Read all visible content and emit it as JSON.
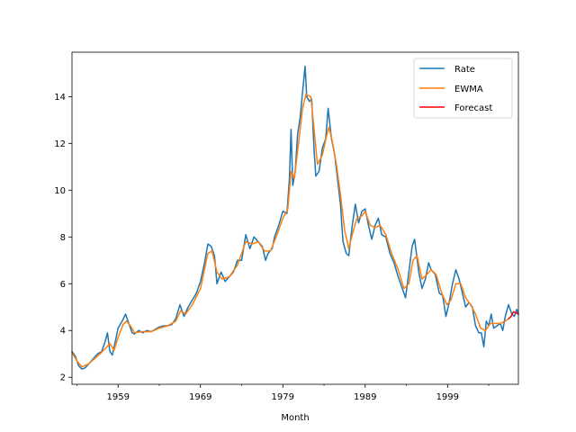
{
  "chart_data": {
    "type": "line",
    "title": "",
    "xlabel": "Month",
    "ylabel": "",
    "xlim": [
      1953.4,
      2007.6
    ],
    "ylim": [
      1.7,
      15.9
    ],
    "x_major_ticks": [
      1959,
      1969,
      1979,
      1989,
      1999
    ],
    "x_major_tick_labels": [
      "1959",
      "1969",
      "1979",
      "1989",
      "1999"
    ],
    "x_minor_ticks": [
      1954,
      1964,
      1974,
      1984,
      1994,
      2004
    ],
    "y_ticks": [
      2,
      4,
      6,
      8,
      10,
      12,
      14
    ],
    "y_tick_labels": [
      "2",
      "4",
      "6",
      "8",
      "10",
      "12",
      "14"
    ],
    "grid": false,
    "legend": {
      "position": "upper right",
      "entries": [
        "Rate",
        "EWMA",
        "Forecast"
      ]
    },
    "series": [
      {
        "name": "Rate",
        "color": "#1f77b4",
        "points": [
          [
            1953.4,
            3.1
          ],
          [
            1953.8,
            2.9
          ],
          [
            1954.2,
            2.5
          ],
          [
            1954.6,
            2.35
          ],
          [
            1955.0,
            2.4
          ],
          [
            1955.5,
            2.6
          ],
          [
            1956.0,
            2.8
          ],
          [
            1956.5,
            3.0
          ],
          [
            1957.0,
            3.1
          ],
          [
            1957.4,
            3.5
          ],
          [
            1957.7,
            3.9
          ],
          [
            1958.0,
            3.1
          ],
          [
            1958.3,
            2.95
          ],
          [
            1958.7,
            3.6
          ],
          [
            1959.0,
            4.1
          ],
          [
            1959.5,
            4.4
          ],
          [
            1959.9,
            4.7
          ],
          [
            1960.3,
            4.3
          ],
          [
            1960.7,
            3.9
          ],
          [
            1961.0,
            3.85
          ],
          [
            1961.5,
            4.0
          ],
          [
            1962.0,
            3.9
          ],
          [
            1962.5,
            4.0
          ],
          [
            1963.0,
            3.95
          ],
          [
            1963.5,
            4.05
          ],
          [
            1964.0,
            4.15
          ],
          [
            1964.5,
            4.2
          ],
          [
            1965.0,
            4.2
          ],
          [
            1965.5,
            4.25
          ],
          [
            1966.0,
            4.5
          ],
          [
            1966.5,
            5.1
          ],
          [
            1967.0,
            4.6
          ],
          [
            1967.5,
            5.0
          ],
          [
            1968.0,
            5.3
          ],
          [
            1968.5,
            5.6
          ],
          [
            1969.0,
            6.1
          ],
          [
            1969.5,
            6.9
          ],
          [
            1969.9,
            7.7
          ],
          [
            1970.3,
            7.6
          ],
          [
            1970.7,
            7.2
          ],
          [
            1971.0,
            6.0
          ],
          [
            1971.5,
            6.5
          ],
          [
            1972.0,
            6.1
          ],
          [
            1972.5,
            6.3
          ],
          [
            1973.0,
            6.5
          ],
          [
            1973.5,
            7.0
          ],
          [
            1974.0,
            7.0
          ],
          [
            1974.5,
            8.1
          ],
          [
            1975.0,
            7.5
          ],
          [
            1975.5,
            8.0
          ],
          [
            1976.0,
            7.8
          ],
          [
            1976.5,
            7.6
          ],
          [
            1976.9,
            7.0
          ],
          [
            1977.2,
            7.3
          ],
          [
            1977.7,
            7.5
          ],
          [
            1978.0,
            8.0
          ],
          [
            1978.5,
            8.5
          ],
          [
            1979.0,
            9.1
          ],
          [
            1979.5,
            9.0
          ],
          [
            1979.8,
            10.5
          ],
          [
            1980.0,
            12.6
          ],
          [
            1980.2,
            10.2
          ],
          [
            1980.5,
            10.8
          ],
          [
            1980.8,
            12.4
          ],
          [
            1981.1,
            13.1
          ],
          [
            1981.4,
            14.2
          ],
          [
            1981.7,
            15.3
          ],
          [
            1981.9,
            14.0
          ],
          [
            1982.2,
            13.8
          ],
          [
            1982.5,
            13.9
          ],
          [
            1982.8,
            11.7
          ],
          [
            1983.0,
            10.6
          ],
          [
            1983.4,
            10.8
          ],
          [
            1983.8,
            11.8
          ],
          [
            1984.2,
            12.2
          ],
          [
            1984.5,
            13.5
          ],
          [
            1984.9,
            12.2
          ],
          [
            1985.3,
            11.5
          ],
          [
            1985.7,
            10.3
          ],
          [
            1986.0,
            9.4
          ],
          [
            1986.3,
            7.8
          ],
          [
            1986.7,
            7.3
          ],
          [
            1987.0,
            7.2
          ],
          [
            1987.4,
            8.4
          ],
          [
            1987.8,
            9.4
          ],
          [
            1988.2,
            8.6
          ],
          [
            1988.6,
            9.1
          ],
          [
            1989.0,
            9.2
          ],
          [
            1989.4,
            8.5
          ],
          [
            1989.8,
            7.9
          ],
          [
            1990.2,
            8.5
          ],
          [
            1990.6,
            8.8
          ],
          [
            1991.0,
            8.1
          ],
          [
            1991.5,
            8.0
          ],
          [
            1992.0,
            7.3
          ],
          [
            1992.5,
            6.9
          ],
          [
            1993.0,
            6.3
          ],
          [
            1993.5,
            5.8
          ],
          [
            1993.9,
            5.4
          ],
          [
            1994.3,
            6.5
          ],
          [
            1994.7,
            7.6
          ],
          [
            1995.0,
            7.9
          ],
          [
            1995.5,
            6.5
          ],
          [
            1995.9,
            5.8
          ],
          [
            1996.3,
            6.2
          ],
          [
            1996.7,
            6.9
          ],
          [
            1997.0,
            6.6
          ],
          [
            1997.5,
            6.4
          ],
          [
            1998.0,
            5.6
          ],
          [
            1998.4,
            5.5
          ],
          [
            1998.8,
            4.6
          ],
          [
            1999.2,
            5.2
          ],
          [
            1999.6,
            6.0
          ],
          [
            2000.0,
            6.6
          ],
          [
            2000.4,
            6.2
          ],
          [
            2000.8,
            5.6
          ],
          [
            2001.2,
            5.0
          ],
          [
            2001.6,
            5.2
          ],
          [
            2002.0,
            5.0
          ],
          [
            2002.4,
            4.2
          ],
          [
            2002.8,
            3.9
          ],
          [
            2003.1,
            3.9
          ],
          [
            2003.4,
            3.3
          ],
          [
            2003.7,
            4.4
          ],
          [
            2004.0,
            4.2
          ],
          [
            2004.3,
            4.7
          ],
          [
            2004.6,
            4.1
          ],
          [
            2005.0,
            4.2
          ],
          [
            2005.4,
            4.3
          ],
          [
            2005.7,
            4.0
          ],
          [
            2006.0,
            4.6
          ],
          [
            2006.4,
            5.1
          ],
          [
            2006.8,
            4.7
          ],
          [
            2007.1,
            4.6
          ],
          [
            2007.4,
            4.9
          ],
          [
            2007.6,
            4.7
          ]
        ]
      },
      {
        "name": "EWMA",
        "color": "#ff7f0e",
        "points": [
          [
            1953.4,
            3.05
          ],
          [
            1954.0,
            2.7
          ],
          [
            1954.6,
            2.45
          ],
          [
            1955.3,
            2.55
          ],
          [
            1956.0,
            2.75
          ],
          [
            1956.8,
            3.0
          ],
          [
            1957.5,
            3.25
          ],
          [
            1958.0,
            3.45
          ],
          [
            1958.5,
            3.15
          ],
          [
            1959.0,
            3.7
          ],
          [
            1959.6,
            4.25
          ],
          [
            1960.0,
            4.4
          ],
          [
            1960.5,
            4.2
          ],
          [
            1961.0,
            3.9
          ],
          [
            1962.0,
            3.95
          ],
          [
            1963.0,
            3.95
          ],
          [
            1964.0,
            4.1
          ],
          [
            1965.0,
            4.2
          ],
          [
            1966.0,
            4.4
          ],
          [
            1966.6,
            4.85
          ],
          [
            1967.2,
            4.7
          ],
          [
            1968.0,
            5.1
          ],
          [
            1969.0,
            5.8
          ],
          [
            1969.9,
            7.3
          ],
          [
            1970.4,
            7.4
          ],
          [
            1971.0,
            6.5
          ],
          [
            1971.6,
            6.2
          ],
          [
            1972.5,
            6.3
          ],
          [
            1973.5,
            6.8
          ],
          [
            1974.5,
            7.8
          ],
          [
            1975.3,
            7.7
          ],
          [
            1976.0,
            7.8
          ],
          [
            1976.8,
            7.4
          ],
          [
            1977.5,
            7.4
          ],
          [
            1978.3,
            8.1
          ],
          [
            1979.0,
            8.8
          ],
          [
            1979.6,
            9.2
          ],
          [
            1980.0,
            10.8
          ],
          [
            1980.4,
            10.5
          ],
          [
            1980.9,
            12.0
          ],
          [
            1981.4,
            13.5
          ],
          [
            1981.8,
            14.1
          ],
          [
            1982.4,
            14.0
          ],
          [
            1982.8,
            12.6
          ],
          [
            1983.2,
            11.1
          ],
          [
            1983.8,
            11.5
          ],
          [
            1984.3,
            12.3
          ],
          [
            1984.6,
            12.7
          ],
          [
            1985.0,
            12.1
          ],
          [
            1985.5,
            11.1
          ],
          [
            1986.0,
            9.8
          ],
          [
            1986.5,
            8.3
          ],
          [
            1987.0,
            7.5
          ],
          [
            1987.5,
            8.2
          ],
          [
            1988.0,
            8.8
          ],
          [
            1988.6,
            8.9
          ],
          [
            1989.0,
            9.1
          ],
          [
            1989.6,
            8.5
          ],
          [
            1990.2,
            8.4
          ],
          [
            1990.8,
            8.5
          ],
          [
            1991.5,
            8.1
          ],
          [
            1992.2,
            7.3
          ],
          [
            1993.0,
            6.6
          ],
          [
            1993.7,
            5.8
          ],
          [
            1994.3,
            6.0
          ],
          [
            1994.8,
            7.0
          ],
          [
            1995.3,
            7.2
          ],
          [
            1995.9,
            6.2
          ],
          [
            1996.5,
            6.4
          ],
          [
            1997.0,
            6.6
          ],
          [
            1997.6,
            6.4
          ],
          [
            1998.3,
            5.6
          ],
          [
            1998.9,
            5.1
          ],
          [
            1999.4,
            5.3
          ],
          [
            2000.0,
            6.0
          ],
          [
            2000.6,
            6.0
          ],
          [
            2001.2,
            5.4
          ],
          [
            2001.8,
            5.1
          ],
          [
            2002.4,
            4.7
          ],
          [
            2003.0,
            4.1
          ],
          [
            2003.6,
            4.0
          ],
          [
            2004.2,
            4.3
          ],
          [
            2004.8,
            4.3
          ],
          [
            2005.4,
            4.3
          ],
          [
            2006.0,
            4.4
          ],
          [
            2006.4,
            4.5
          ]
        ]
      },
      {
        "name": "Forecast",
        "color": "#ff0000",
        "points": [
          [
            2006.4,
            4.5
          ],
          [
            2006.7,
            4.6
          ],
          [
            2007.0,
            4.8
          ],
          [
            2007.3,
            4.75
          ],
          [
            2007.6,
            4.7
          ]
        ]
      }
    ]
  }
}
